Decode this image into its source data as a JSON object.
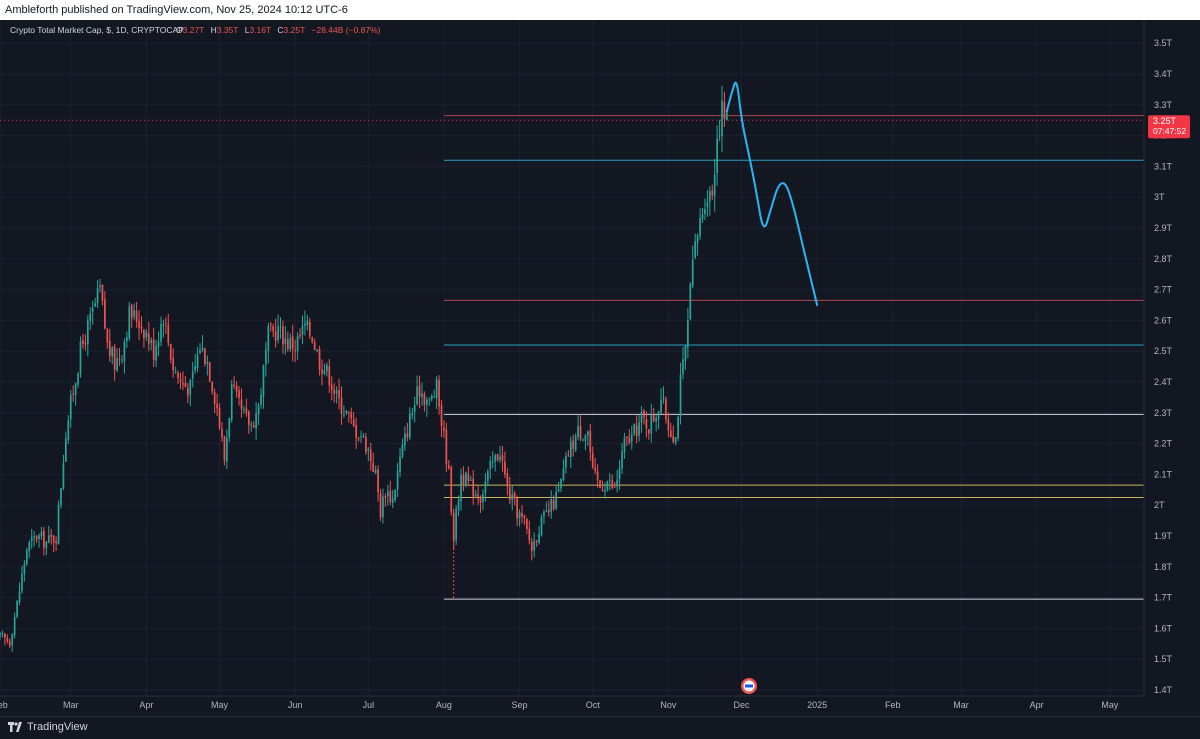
{
  "header": {
    "publish_text": "Ambleforth published on TradingView.com, Nov 25, 2024 10:12 UTC-6"
  },
  "legend": {
    "symbol": "Crypto Total Market Cap, $, 1D, CRYPTOCAP",
    "o_label": "O",
    "o_val": "3.27T",
    "h_label": "H",
    "h_val": "3.35T",
    "l_label": "L",
    "l_val": "3.16T",
    "c_label": "C",
    "c_val": "3.25T",
    "change": "−28.44B (−0.87%)"
  },
  "price_tag": {
    "price": "3.25T",
    "countdown": "07:47:52"
  },
  "footer": {
    "logo_text": "TradingView"
  },
  "colors": {
    "up": "#26a69a",
    "down": "#ef5350",
    "bg": "#131722",
    "projection": "#29b6f6",
    "res_red": "#b2444c",
    "level_cyan": "#2a9fbf",
    "level_white": "#d1d4dc",
    "level_yellow": "#c9b458"
  },
  "chart_data": {
    "type": "candlestick",
    "title": "Crypto Total Market Cap, $, 1D, CRYPTOCAP",
    "y_unit": "T",
    "ylim": [
      1.37,
      3.58
    ],
    "y_ticks": [
      "3.5T",
      "3.4T",
      "3.3T",
      "3.2T",
      "3.1T",
      "3T",
      "2.9T",
      "2.8T",
      "2.7T",
      "2.6T",
      "2.5T",
      "2.4T",
      "2.3T",
      "2.2T",
      "2.1T",
      "2T",
      "1.9T",
      "1.8T",
      "1.7T",
      "1.6T",
      "1.5T",
      "1.4T"
    ],
    "y_tick_values": [
      3.5,
      3.4,
      3.3,
      3.2,
      3.1,
      3.0,
      2.9,
      2.8,
      2.7,
      2.6,
      2.5,
      2.4,
      2.3,
      2.2,
      2.1,
      2.0,
      1.9,
      1.8,
      1.7,
      1.6,
      1.5,
      1.4
    ],
    "x_start": "2024-02-01",
    "x_end": "2025-05-15",
    "x_ticks": [
      {
        "label": "Feb",
        "date": "2024-02-01"
      },
      {
        "label": "Mar",
        "date": "2024-03-01"
      },
      {
        "label": "Apr",
        "date": "2024-04-01"
      },
      {
        "label": "May",
        "date": "2024-05-01"
      },
      {
        "label": "Jun",
        "date": "2024-06-01"
      },
      {
        "label": "Jul",
        "date": "2024-07-01"
      },
      {
        "label": "Aug",
        "date": "2024-08-01"
      },
      {
        "label": "Sep",
        "date": "2024-09-01"
      },
      {
        "label": "Oct",
        "date": "2024-10-01"
      },
      {
        "label": "Nov",
        "date": "2024-11-01"
      },
      {
        "label": "Dec",
        "date": "2024-12-01"
      },
      {
        "label": "2025",
        "date": "2025-01-01"
      },
      {
        "label": "Feb",
        "date": "2025-02-01"
      },
      {
        "label": "Mar",
        "date": "2025-03-01"
      },
      {
        "label": "Apr",
        "date": "2025-04-01"
      },
      {
        "label": "May",
        "date": "2025-05-01"
      }
    ],
    "close_path": [
      [
        "2024-02-01",
        1.57
      ],
      [
        "2024-02-05",
        1.56
      ],
      [
        "2024-02-08",
        1.68
      ],
      [
        "2024-02-12",
        1.86
      ],
      [
        "2024-02-16",
        1.9
      ],
      [
        "2024-02-20",
        1.88
      ],
      [
        "2024-02-24",
        1.9
      ],
      [
        "2024-02-28",
        2.24
      ],
      [
        "2024-03-01",
        2.33
      ],
      [
        "2024-03-05",
        2.5
      ],
      [
        "2024-03-09",
        2.6
      ],
      [
        "2024-03-13",
        2.7
      ],
      [
        "2024-03-16",
        2.52
      ],
      [
        "2024-03-19",
        2.46
      ],
      [
        "2024-03-22",
        2.5
      ],
      [
        "2024-03-25",
        2.62
      ],
      [
        "2024-03-28",
        2.61
      ],
      [
        "2024-04-01",
        2.56
      ],
      [
        "2024-04-04",
        2.5
      ],
      [
        "2024-04-08",
        2.62
      ],
      [
        "2024-04-12",
        2.45
      ],
      [
        "2024-04-15",
        2.4
      ],
      [
        "2024-04-19",
        2.38
      ],
      [
        "2024-04-23",
        2.52
      ],
      [
        "2024-04-26",
        2.47
      ],
      [
        "2024-04-30",
        2.32
      ],
      [
        "2024-05-03",
        2.15
      ],
      [
        "2024-05-06",
        2.38
      ],
      [
        "2024-05-10",
        2.3
      ],
      [
        "2024-05-14",
        2.26
      ],
      [
        "2024-05-17",
        2.32
      ],
      [
        "2024-05-21",
        2.55
      ],
      [
        "2024-05-25",
        2.57
      ],
      [
        "2024-05-29",
        2.53
      ],
      [
        "2024-06-01",
        2.52
      ],
      [
        "2024-06-05",
        2.58
      ],
      [
        "2024-06-08",
        2.55
      ],
      [
        "2024-06-11",
        2.47
      ],
      [
        "2024-06-15",
        2.42
      ],
      [
        "2024-06-18",
        2.35
      ],
      [
        "2024-06-22",
        2.3
      ],
      [
        "2024-06-25",
        2.25
      ],
      [
        "2024-06-28",
        2.23
      ],
      [
        "2024-07-01",
        2.18
      ],
      [
        "2024-07-04",
        2.1
      ],
      [
        "2024-07-06",
        1.98
      ],
      [
        "2024-07-08",
        2.05
      ],
      [
        "2024-07-11",
        2.02
      ],
      [
        "2024-07-14",
        2.15
      ],
      [
        "2024-07-18",
        2.28
      ],
      [
        "2024-07-22",
        2.38
      ],
      [
        "2024-07-26",
        2.33
      ],
      [
        "2024-07-29",
        2.38
      ],
      [
        "2024-08-01",
        2.22
      ],
      [
        "2024-08-03",
        2.1
      ],
      [
        "2024-08-05",
        1.9
      ],
      [
        "2024-08-08",
        2.1
      ],
      [
        "2024-08-12",
        2.06
      ],
      [
        "2024-08-16",
        2.03
      ],
      [
        "2024-08-20",
        2.12
      ],
      [
        "2024-08-24",
        2.18
      ],
      [
        "2024-08-27",
        2.05
      ],
      [
        "2024-08-31",
        1.98
      ],
      [
        "2024-09-03",
        1.94
      ],
      [
        "2024-09-06",
        1.86
      ],
      [
        "2024-09-09",
        1.93
      ],
      [
        "2024-09-13",
        1.98
      ],
      [
        "2024-09-17",
        2.04
      ],
      [
        "2024-09-21",
        2.17
      ],
      [
        "2024-09-25",
        2.24
      ],
      [
        "2024-09-29",
        2.24
      ],
      [
        "2024-10-01",
        2.1
      ],
      [
        "2024-10-04",
        2.06
      ],
      [
        "2024-10-07",
        2.08
      ],
      [
        "2024-10-10",
        2.05
      ],
      [
        "2024-10-14",
        2.2
      ],
      [
        "2024-10-17",
        2.22
      ],
      [
        "2024-10-21",
        2.28
      ],
      [
        "2024-10-24",
        2.26
      ],
      [
        "2024-10-27",
        2.3
      ],
      [
        "2024-10-29",
        2.35
      ],
      [
        "2024-11-01",
        2.26
      ],
      [
        "2024-11-04",
        2.22
      ],
      [
        "2024-11-06",
        2.4
      ],
      [
        "2024-11-08",
        2.5
      ],
      [
        "2024-11-11",
        2.78
      ],
      [
        "2024-11-13",
        2.88
      ],
      [
        "2024-11-16",
        3.0
      ],
      [
        "2024-11-19",
        3.02
      ],
      [
        "2024-11-21",
        3.2
      ],
      [
        "2024-11-23",
        3.28
      ],
      [
        "2024-11-25",
        3.25
      ]
    ],
    "levels": [
      {
        "value": 3.265,
        "color": "res_red",
        "from": "2024-08-01"
      },
      {
        "value": 3.12,
        "color": "level_cyan",
        "from": "2024-08-01"
      },
      {
        "value": 2.665,
        "color": "res_red",
        "from": "2024-08-01"
      },
      {
        "value": 2.52,
        "color": "level_cyan",
        "from": "2024-08-01"
      },
      {
        "value": 2.295,
        "color": "level_white",
        "from": "2024-08-01"
      },
      {
        "value": 2.065,
        "color": "level_yellow",
        "from": "2024-08-01"
      },
      {
        "value": 2.025,
        "color": "level_yellow",
        "from": "2024-08-01"
      },
      {
        "value": 1.695,
        "color": "level_white",
        "from": "2024-08-01"
      }
    ],
    "current_price_line": 3.25,
    "projection": [
      [
        "2024-11-25",
        3.28
      ],
      [
        "2024-11-27",
        3.34
      ],
      [
        "2024-11-29",
        3.39
      ],
      [
        "2024-12-01",
        3.25
      ],
      [
        "2024-12-04",
        3.14
      ],
      [
        "2024-12-07",
        3.02
      ],
      [
        "2024-12-10",
        2.88
      ],
      [
        "2024-12-13",
        2.96
      ],
      [
        "2024-12-16",
        3.04
      ],
      [
        "2024-12-19",
        3.05
      ],
      [
        "2024-12-22",
        2.98
      ],
      [
        "2024-12-25",
        2.88
      ],
      [
        "2024-12-28",
        2.78
      ],
      [
        "2025-01-01",
        2.65
      ]
    ]
  }
}
